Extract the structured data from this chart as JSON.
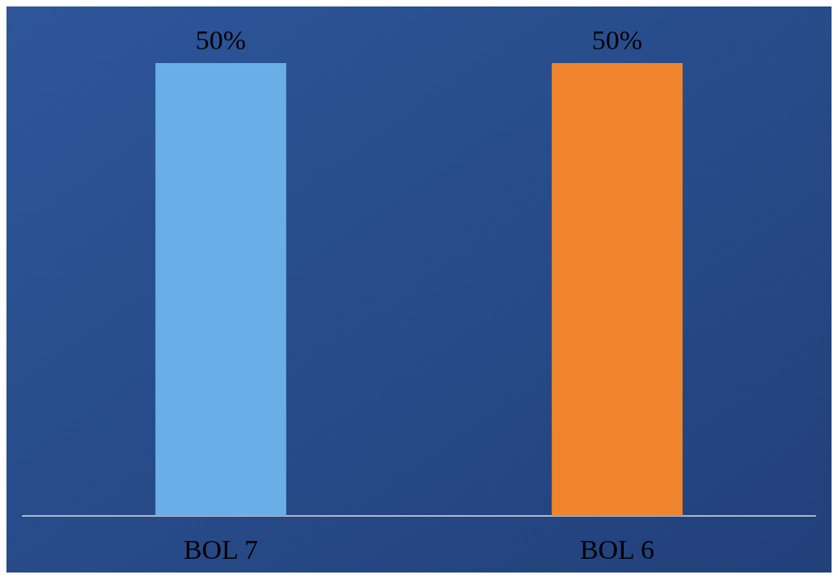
{
  "chart_data": {
    "type": "bar",
    "categories": [
      "BOL 7",
      "BOL 6"
    ],
    "values": [
      50,
      50
    ],
    "colors": [
      "#6aaee8",
      "#f0852d"
    ],
    "value_labels": [
      "50%",
      "50%"
    ]
  }
}
